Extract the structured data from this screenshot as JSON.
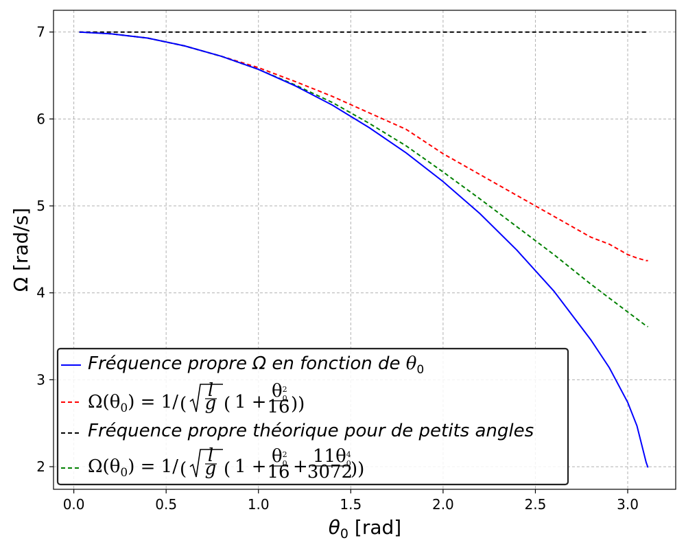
{
  "chart_data": {
    "type": "line",
    "title": "",
    "xlabel": "θ0 [rad]",
    "xlabel_base": "θ",
    "xlabel_sub": "0",
    "xlabel_unit": " [rad]",
    "ylabel": "Ω [rad/s]",
    "xlim": [
      -0.11,
      3.26
    ],
    "ylim": [
      1.74,
      7.25
    ],
    "xticks": [
      "0.0",
      "0.5",
      "1.0",
      "1.5",
      "2.0",
      "2.5",
      "3.0"
    ],
    "xtick_values": [
      0,
      0.5,
      1.0,
      1.5,
      2.0,
      2.5,
      3.0
    ],
    "yticks": [
      "2",
      "3",
      "4",
      "5",
      "6",
      "7"
    ],
    "ytick_values": [
      2,
      3,
      4,
      5,
      6,
      7
    ],
    "grid": true,
    "legend_position": "lower-left",
    "x": [
      0.03,
      0.2,
      0.4,
      0.6,
      0.8,
      1.0,
      1.2,
      1.4,
      1.6,
      1.8,
      2.0,
      2.2,
      2.4,
      2.6,
      2.8,
      2.9,
      3.0,
      3.05,
      3.1,
      3.11
    ],
    "series": [
      {
        "name": "Fréquence propre Ω en fonction de θ0",
        "color": "#0000ff",
        "style": "solid",
        "values": [
          7.0,
          6.98,
          6.93,
          6.84,
          6.72,
          6.57,
          6.38,
          6.16,
          5.9,
          5.61,
          5.28,
          4.91,
          4.49,
          4.02,
          3.46,
          3.14,
          2.74,
          2.47,
          2.05,
          1.99
        ]
      },
      {
        "name": "Ω(θ0) = 1/(√(l/g)(1 + θ0²/16))",
        "color": "#ff0000",
        "style": "dashed",
        "values": [
          7.0,
          6.98,
          6.93,
          6.84,
          6.72,
          6.59,
          6.43,
          6.26,
          6.07,
          5.88,
          5.6,
          5.36,
          5.12,
          4.88,
          4.64,
          4.56,
          4.44,
          4.4,
          4.37,
          4.37
        ]
      },
      {
        "name": "Fréquence propre théorique pour de petits angles",
        "color": "#000000",
        "style": "dashed",
        "values": [
          7.0,
          7.0,
          7.0,
          7.0,
          7.0,
          7.0,
          7.0,
          7.0,
          7.0,
          7.0,
          7.0,
          7.0,
          7.0,
          7.0,
          7.0,
          7.0,
          7.0,
          7.0,
          7.0,
          7.0
        ]
      },
      {
        "name": "Ω(θ0) = 1/(√(l/g)(1 + θ0²/16 + 11θ0⁴/3072))",
        "color": "#008000",
        "style": "dashed",
        "values": [
          7.0,
          6.98,
          6.93,
          6.84,
          6.72,
          6.57,
          6.39,
          6.19,
          5.95,
          5.69,
          5.39,
          5.08,
          4.76,
          4.44,
          4.1,
          3.94,
          3.78,
          3.7,
          3.62,
          3.61
        ]
      }
    ]
  },
  "legend": {
    "item1": {
      "prefix": "Fréquence propre Ω en fonction de ",
      "theta": "θ",
      "sub": "0"
    },
    "item2": {
      "lhs": "Ω(θ",
      "sub": "0",
      "rhs": ") = 1/",
      "l": "l",
      "g": "g",
      "one": "1 +",
      "num_theta": "θ",
      "num_sup": "2",
      "num_sub": "0",
      "den": "16"
    },
    "item3": {
      "text": "Fréquence propre théorique pour de petits angles"
    },
    "item4": {
      "lhs": "Ω(θ",
      "sub": "0",
      "rhs": ") = 1/",
      "l": "l",
      "g": "g",
      "one": "1 +",
      "num_theta": "θ",
      "num_sup": "2",
      "num_sub": "0",
      "den": "16",
      "plus": "+",
      "num2_prefix": "11θ",
      "num2_sup": "4",
      "num2_sub": "0",
      "den2": "3072"
    }
  }
}
